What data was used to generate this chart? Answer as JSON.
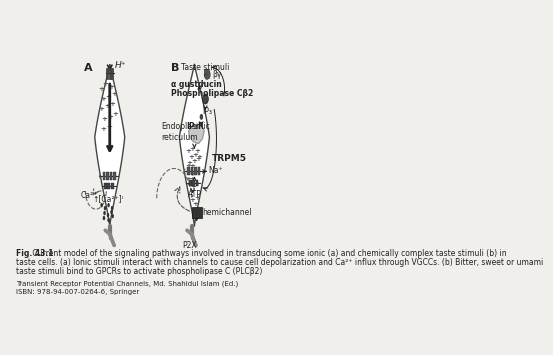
{
  "bg_color": "#f0efeb",
  "caption_bold": "Fig. 43.1",
  "caption_text": " Current model of the signaling pathways involved in transducing some ionic (a) and chemically complex taste stimuli (b) in\ntaste cells. (a) Ionic stimuli interact with channels to cause cell depolarization and Ca²⁺ influx through VGCCs. (b) Bitter, sweet or umami\ntaste stimuli bind to GPCRs to activate phospholipase C (PLCβ2)",
  "publisher_line1": "Transient Receptor Potential Channels, Md. Shahidul Islam (Ed.)",
  "publisher_line2": "ISBN: 978-94-007-0264-6, Springer",
  "label_A": "A",
  "label_B": "B",
  "label_Hplus": "H⁺",
  "label_taste_stimuli": "Taste stimuli",
  "label_alpha_gustducin": "α gustducin",
  "label_Py": "βγ",
  "label_plcb2": "Phospholipase Cβ2",
  "label_IP3": "IP₃",
  "label_ipr": "IP₃R",
  "label_endo": "Endoplasmic\nreticulum",
  "label_TRPM5": "TRPM5",
  "label_Na": "Na⁺",
  "label_ATP": "ATP",
  "label_hemichannel": "hemichannel",
  "label_P2X": "P2X",
  "label_Ca2plus_out": "Ca²⁺",
  "label_Ca2plus_in": "↑[Ca²⁺]ᴵ",
  "text_color": "#222222",
  "dark": "#222222",
  "gray": "#999999",
  "light_gray": "#cccccc"
}
